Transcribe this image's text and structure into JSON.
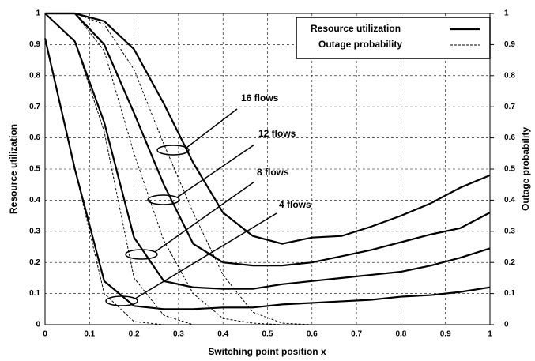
{
  "chart_data": {
    "type": "line",
    "xlabel": "Switching point position x",
    "ylabel": "Resource utilization",
    "y2label": "Outage probability",
    "x": [
      0,
      0.067,
      0.133,
      0.2,
      0.267,
      0.333,
      0.4,
      0.467,
      0.533,
      0.6,
      0.667,
      0.733,
      0.8,
      0.867,
      0.933,
      1
    ],
    "xlim": [
      0,
      1
    ],
    "xticks": [
      0,
      0.1,
      0.2,
      0.3,
      0.4,
      0.5,
      0.6,
      0.7,
      0.8,
      0.9,
      1
    ],
    "ylim": [
      0,
      1
    ],
    "yticks": [
      0,
      0.1,
      0.2,
      0.3,
      0.4,
      0.5,
      0.6,
      0.7,
      0.8,
      0.9,
      1
    ],
    "y2lim": [
      0,
      1
    ],
    "y2ticks": [
      0,
      0.1,
      0.2,
      0.3,
      0.4,
      0.5,
      0.6,
      0.7,
      0.8,
      0.9,
      1
    ],
    "grid": true,
    "legend": "upper right",
    "series": [
      {
        "name": "Resource utilization",
        "color": "#000000",
        "dash": false,
        "axis": "y",
        "lines": [
          [
            0.92,
            0.5,
            0.14,
            0.06,
            0.05,
            0.05,
            0.055,
            0.055,
            0.065,
            0.07,
            0.075,
            0.08,
            0.09,
            0.095,
            0.105,
            0.12
          ],
          [
            1,
            0.91,
            0.65,
            0.28,
            0.14,
            0.12,
            0.115,
            0.115,
            0.13,
            0.14,
            0.15,
            0.16,
            0.17,
            0.19,
            0.215,
            0.245
          ],
          [
            1,
            1,
            0.9,
            0.68,
            0.45,
            0.26,
            0.2,
            0.19,
            0.19,
            0.2,
            0.22,
            0.24,
            0.265,
            0.29,
            0.31,
            0.36
          ],
          [
            1,
            1,
            0.975,
            0.885,
            0.71,
            0.52,
            0.36,
            0.285,
            0.26,
            0.28,
            0.285,
            0.315,
            0.35,
            0.39,
            0.44,
            0.48
          ]
        ]
      },
      {
        "name": "Outage probability",
        "color": "#000000",
        "dash": true,
        "axis": "y2",
        "lines": [
          [
            0.92,
            0.5,
            0.1,
            0.01,
            0,
            0,
            0,
            0,
            0,
            0,
            0,
            0,
            0,
            0,
            0,
            0
          ],
          [
            1,
            0.91,
            0.62,
            0.15,
            0.03,
            0,
            0,
            0,
            0,
            0,
            0,
            0,
            0,
            0,
            0,
            0
          ],
          [
            1,
            1,
            0.88,
            0.55,
            0.27,
            0.1,
            0.02,
            0.005,
            0,
            0,
            0,
            0,
            0,
            0,
            0,
            0
          ],
          [
            1,
            1,
            0.965,
            0.82,
            0.58,
            0.36,
            0.16,
            0.04,
            0.005,
            0,
            0,
            0,
            0,
            0,
            0,
            0
          ]
        ]
      }
    ],
    "annotations": [
      "4 flows",
      "8 flows",
      "12 flows",
      "16 flows"
    ]
  }
}
